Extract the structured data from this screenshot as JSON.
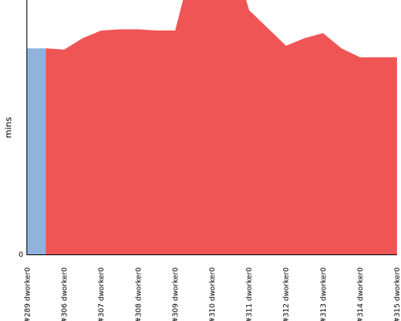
{
  "chart_data": {
    "type": "area",
    "title": "",
    "xlabel": "",
    "ylabel": "mins",
    "ylim": [
      0,
      100
    ],
    "y_tick_labels": [
      "0"
    ],
    "grid": false,
    "legend": "none",
    "categories": [
      "#289 dworker0",
      "#306 dworker0",
      "#307 dworker0",
      "#308 dworker0",
      "#309 dworker0",
      "#310 dworker0",
      "#311 dworker0",
      "#312 dworker0",
      "#313 dworker0",
      "#314 dworker0",
      "#315 dworker0"
    ],
    "series": [
      {
        "color": "#8fb3dd",
        "x": [
          0,
          0.5
        ],
        "values": [
          81,
          81
        ]
      },
      {
        "color": "#f05556",
        "x": [
          0.5,
          1,
          1.5,
          2,
          2.5,
          3,
          3.5,
          4,
          4.3,
          5,
          5.9,
          6,
          7,
          7.5,
          8,
          8.5,
          9,
          10
        ],
        "values": [
          81,
          80.5,
          85,
          88,
          88.5,
          88.5,
          88,
          88,
          105,
          105,
          101,
          96,
          82,
          85,
          87,
          81,
          77.5,
          77.5
        ]
      }
    ]
  }
}
